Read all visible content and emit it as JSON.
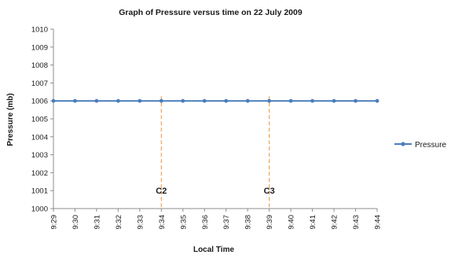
{
  "chart_data": {
    "type": "line",
    "title": "Graph of Pressure versus time on 22 July 2009",
    "xlabel": "Local Time",
    "ylabel": "Pressure (mb)",
    "categories": [
      "9:29",
      "9:30",
      "9:31",
      "9:32",
      "9:33",
      "9:34",
      "9:35",
      "9:36",
      "9:37",
      "9:38",
      "9:39",
      "9:40",
      "9:41",
      "9:42",
      "9:43",
      "9:44"
    ],
    "series": [
      {
        "name": "Pressure",
        "values": [
          1006,
          1006,
          1006,
          1006,
          1006,
          1006,
          1006,
          1006,
          1006,
          1006,
          1006,
          1006,
          1006,
          1006,
          1006,
          1006
        ],
        "color": "#4a7ebb"
      }
    ],
    "ylim": [
      1000,
      1010
    ],
    "ytick_step": 1,
    "yticks": [
      "1000",
      "1001",
      "1002",
      "1003",
      "1004",
      "1005",
      "1006",
      "1007",
      "1008",
      "1009",
      "1010"
    ],
    "grid": false,
    "legend": "right",
    "annotations": [
      {
        "label": "C2",
        "x": "9:34",
        "color": "#f0a35a"
      },
      {
        "label": "C3",
        "x": "9:39",
        "color": "#f0a35a"
      }
    ]
  }
}
